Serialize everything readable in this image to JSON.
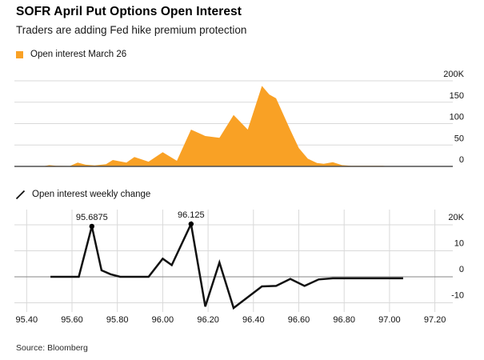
{
  "header": {
    "title": "SOFR April Put Options Open Interest",
    "subtitle": "Traders are adding Fed hike premium protection"
  },
  "legends": {
    "open_interest": "Open interest March 26",
    "weekly_change": "Open interest weekly change"
  },
  "source": "Source: Bloomberg",
  "colors": {
    "area_orange": "#F9A125",
    "line_black": "#111111",
    "grid": "#d9d9d9",
    "baseline": "#4f4f4f",
    "zero_line": "#858585",
    "label": "#111111"
  },
  "xaxis": {
    "range": [
      95.4,
      97.2
    ],
    "ticks": [
      {
        "label": "95.40",
        "value": 95.4
      },
      {
        "label": "95.60",
        "value": 95.6
      },
      {
        "label": "95.80",
        "value": 95.8
      },
      {
        "label": "96.00",
        "value": 96.0
      },
      {
        "label": "96.20",
        "value": 96.2
      },
      {
        "label": "96.40",
        "value": 96.4
      },
      {
        "label": "96.60",
        "value": 96.6
      },
      {
        "label": "96.80",
        "value": 96.8
      },
      {
        "label": "97.00",
        "value": 97.0
      },
      {
        "label": "97.20",
        "value": 97.2
      }
    ]
  },
  "chart_data": [
    {
      "type": "area",
      "name": "Open interest March 26",
      "unit": "thousands of contracts",
      "color": "#F9A125",
      "ylim": [
        0,
        200
      ],
      "yticks": [
        {
          "label": "200K",
          "value": 200
        },
        {
          "label": "150",
          "value": 150
        },
        {
          "label": "100",
          "value": 100
        },
        {
          "label": "50",
          "value": 50
        },
        {
          "label": "0",
          "value": 0
        }
      ],
      "x": [
        95.47,
        95.5,
        95.53,
        95.59,
        95.625,
        95.66,
        95.7,
        95.75,
        95.78,
        95.84,
        95.875,
        95.9375,
        96.0,
        96.0625,
        96.125,
        96.1875,
        96.25,
        96.3125,
        96.375,
        96.4375,
        96.47,
        96.5,
        96.5625,
        96.6,
        96.64,
        96.68,
        96.71,
        96.75,
        96.79,
        96.83,
        96.97,
        97.0
      ],
      "y": [
        0,
        3,
        1.5,
        1,
        9,
        4,
        2.5,
        5,
        15,
        9,
        22,
        11,
        33,
        13,
        86,
        71,
        67,
        120,
        86,
        188,
        168,
        159,
        85,
        43,
        18,
        8,
        6,
        10,
        3,
        1.5,
        1.5,
        0
      ]
    },
    {
      "type": "line",
      "name": "Open interest weekly change",
      "unit": "thousands of contracts",
      "color": "#111111",
      "ylim": [
        -13,
        22
      ],
      "yticks": [
        {
          "label": "20K",
          "value": 20
        },
        {
          "label": "10",
          "value": 10
        },
        {
          "label": "0",
          "value": 0
        },
        {
          "label": "-10",
          "value": -10
        }
      ],
      "x": [
        95.505,
        95.63,
        95.6875,
        95.73,
        95.77,
        95.8125,
        95.9375,
        96.0,
        96.04,
        96.125,
        96.1875,
        96.25,
        96.3125,
        96.4375,
        96.5,
        96.5625,
        96.625,
        96.6875,
        96.75,
        97.06
      ],
      "y": [
        0,
        0,
        19.4,
        2.5,
        1,
        0,
        0,
        7,
        4.5,
        20.3,
        -11.4,
        5.5,
        -12,
        -3.7,
        -3.5,
        -0.8,
        -3.5,
        -1,
        -0.6,
        -0.6
      ],
      "annotations": [
        {
          "x": 95.6875,
          "y": 19.4,
          "label": "95.6875"
        },
        {
          "x": 96.125,
          "y": 20.3,
          "label": "96.125"
        }
      ]
    }
  ]
}
